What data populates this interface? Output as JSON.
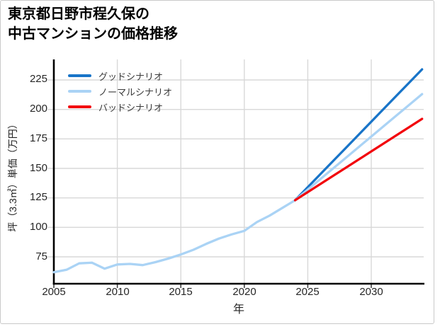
{
  "title": {
    "line1": "東京都日野市程久保の",
    "line2": "中古マンションの価格推移"
  },
  "chart_data": {
    "type": "line",
    "title": "東京都日野市程久保の中古マンションの価格推移",
    "xlabel": "年",
    "ylabel": "坪（3.3㎡）単価（万円）",
    "xlim": [
      2005,
      2034
    ],
    "ylim": [
      50,
      240
    ],
    "x_ticks": [
      2005,
      2010,
      2015,
      2020,
      2025,
      2030
    ],
    "y_ticks": [
      75,
      100,
      125,
      150,
      175,
      200,
      225
    ],
    "grid": true,
    "legend_position": "upper left",
    "series": [
      {
        "name": "グッドシナリオ",
        "color": "#1874c8",
        "x": [
          2024,
          2025,
          2026,
          2027,
          2028,
          2029,
          2030,
          2031,
          2032,
          2033,
          2034
        ],
        "values": [
          123,
          134.1,
          145.2,
          156.3,
          167.4,
          178.5,
          189.6,
          200.7,
          211.8,
          222.9,
          234
        ]
      },
      {
        "name": "ノーマルシナリオ",
        "color": "#aad3f5",
        "x": [
          2005,
          2006,
          2007,
          2008,
          2009,
          2010,
          2011,
          2012,
          2013,
          2014,
          2015,
          2016,
          2017,
          2018,
          2019,
          2020,
          2021,
          2022,
          2023,
          2024,
          2025,
          2026,
          2027,
          2028,
          2029,
          2030,
          2031,
          2032,
          2033,
          2034
        ],
        "values": [
          62,
          64,
          69.5,
          70,
          65,
          68.5,
          69,
          68,
          70.5,
          73.5,
          77,
          81,
          86,
          90.5,
          94,
          97,
          104.5,
          110,
          116.5,
          123,
          132,
          141,
          150,
          159,
          168,
          177,
          186,
          195,
          204,
          213
        ]
      },
      {
        "name": "バッドシナリオ",
        "color": "#f2050c",
        "x": [
          2024,
          2025,
          2026,
          2027,
          2028,
          2029,
          2030,
          2031,
          2032,
          2033,
          2034
        ],
        "values": [
          123,
          129.9,
          136.8,
          143.7,
          150.6,
          157.5,
          164.4,
          171.3,
          178.2,
          185.1,
          192
        ]
      }
    ]
  }
}
